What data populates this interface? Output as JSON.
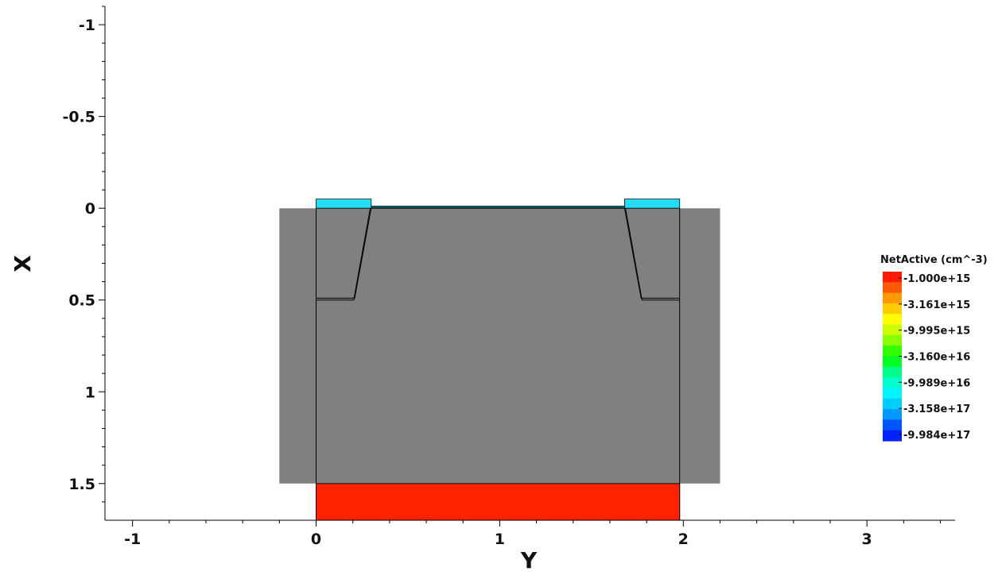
{
  "chart_data": {
    "type": "heatmap",
    "xlabel": "Y",
    "ylabel": "X",
    "xlim": [
      -1.15,
      3.48
    ],
    "ylim": [
      -1.1,
      1.7
    ],
    "y_inverted": true,
    "x_ticks": [
      -1,
      0,
      1,
      2,
      3
    ],
    "x_tick_labels": [
      "-1",
      "0",
      "1",
      "2",
      "3"
    ],
    "y_ticks": [
      -1,
      -0.5,
      0,
      0.5,
      1,
      1.5
    ],
    "y_tick_labels": [
      "-1",
      "-0.5",
      "0",
      "0.5",
      "1",
      "1.5"
    ],
    "grid": false,
    "regions": [
      {
        "name": "outer-region",
        "color": "#808080",
        "polygon": [
          [
            -0.2,
            0
          ],
          [
            2.2,
            0
          ],
          [
            2.2,
            1.5
          ],
          [
            -0.2,
            1.5
          ]
        ]
      },
      {
        "name": "substrate-doped-region",
        "color": "#ff2200",
        "polygon": [
          [
            0,
            1.5
          ],
          [
            1.98,
            1.5
          ],
          [
            1.98,
            1.7
          ],
          [
            0,
            1.7
          ]
        ]
      },
      {
        "name": "left-contact-region",
        "color": "#22ddf5",
        "polygon": [
          [
            0,
            -0.05
          ],
          [
            0.3,
            -0.05
          ],
          [
            0.3,
            0
          ],
          [
            0,
            0
          ]
        ]
      },
      {
        "name": "right-contact-region",
        "color": "#22ddf5",
        "polygon": [
          [
            1.68,
            -0.05
          ],
          [
            1.98,
            -0.05
          ],
          [
            1.98,
            0
          ],
          [
            1.68,
            0
          ]
        ]
      },
      {
        "name": "surface-channel-region",
        "color": "#22ddf5",
        "polygon": [
          [
            0.3,
            -0.012
          ],
          [
            1.68,
            -0.012
          ],
          [
            1.68,
            0
          ],
          [
            0.3,
            0
          ]
        ]
      }
    ],
    "outlines": [
      {
        "name": "device-boundary",
        "points": [
          [
            0,
            0
          ],
          [
            0,
            1.7
          ]
        ]
      },
      {
        "name": "device-boundary",
        "points": [
          [
            1.98,
            0
          ],
          [
            1.98,
            1.7
          ]
        ]
      },
      {
        "name": "left-junction",
        "points": [
          [
            0.3,
            0
          ],
          [
            0.21,
            0.49
          ],
          [
            0,
            0.49
          ]
        ]
      },
      {
        "name": "left-junction",
        "points": [
          [
            0.295,
            0
          ],
          [
            0.205,
            0.5
          ],
          [
            0,
            0.5
          ]
        ]
      },
      {
        "name": "right-junction",
        "points": [
          [
            1.68,
            0
          ],
          [
            1.77,
            0.49
          ],
          [
            1.98,
            0.49
          ]
        ]
      },
      {
        "name": "right-junction",
        "points": [
          [
            1.685,
            0
          ],
          [
            1.775,
            0.5
          ],
          [
            1.98,
            0.5
          ]
        ]
      },
      {
        "name": "surface-line",
        "points": [
          [
            0.3,
            -0.005
          ],
          [
            1.68,
            -0.005
          ]
        ]
      }
    ],
    "colorbar": {
      "title": "NetActive (cm^-3)",
      "scale": "log",
      "labels": [
        "-1.000e+15",
        "-3.161e+15",
        "-9.995e+15",
        "-3.160e+16",
        "-9.989e+16",
        "-3.158e+17",
        "-9.984e+17"
      ],
      "colors": [
        "#ff1a00",
        "#ff5a00",
        "#ff9a00",
        "#ffcc00",
        "#ffff00",
        "#ccff00",
        "#88ff00",
        "#33ff00",
        "#00ff22",
        "#00ff88",
        "#00ffcc",
        "#00f5ff",
        "#00ccff",
        "#0099ff",
        "#0055ff",
        "#0022ff"
      ]
    }
  }
}
